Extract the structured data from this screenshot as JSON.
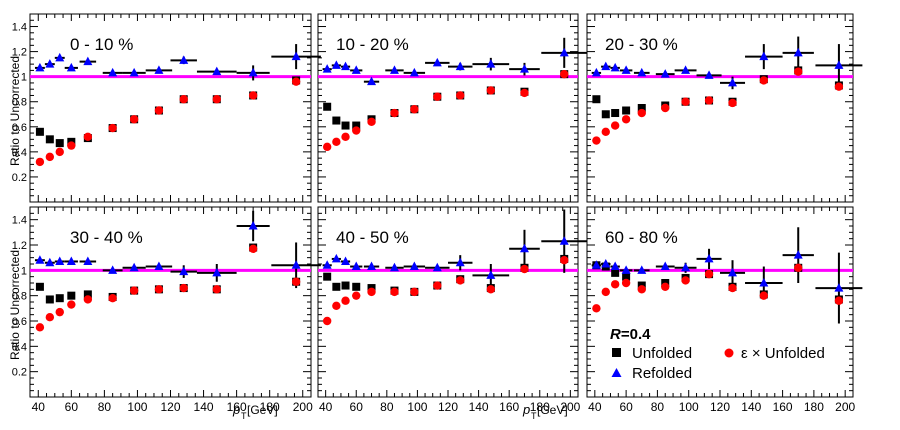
{
  "figure": {
    "ylabel": "Ratio to Uncorrected",
    "xlabel_main": "p",
    "xlabel_sub": "T",
    "xlabel_unit": " [GeV]",
    "yticks_top": [
      "0.2",
      "0.4",
      "0.6",
      "0.8",
      "1",
      "1.2",
      "1.4"
    ],
    "yticks_bottom": [
      "0.2",
      "0.4",
      "0.6",
      "0.8",
      "1",
      "1.2",
      "1.4"
    ],
    "xticks": [
      "40",
      "60",
      "80",
      "100",
      "120",
      "140",
      "160",
      "180",
      "200"
    ],
    "legend": {
      "radius_label": "R",
      "radius_value": "=0.4",
      "unfolded": "Unfolded",
      "eff_unfolded": "ε × Unfolded",
      "refolded": "Refolded"
    },
    "colors": {
      "unfolded": "#000000",
      "eff_unfolded": "#ff0000",
      "refolded": "#0000ff",
      "reference_line": "#ff00ff"
    }
  },
  "chart_data": [
    {
      "type": "scatter",
      "title": "0 - 10 %",
      "xlabel": "pT [GeV]",
      "ylabel": "Ratio to Uncorrected",
      "xlim": [
        35,
        205
      ],
      "ylim": [
        0,
        1.5
      ],
      "reference_line": 1.0,
      "series": [
        {
          "name": "Unfolded",
          "x": [
            41,
            47,
            53,
            60,
            70,
            85,
            98,
            113,
            128,
            148,
            170,
            196
          ],
          "y": [
            0.56,
            0.5,
            0.47,
            0.48,
            0.51,
            0.59,
            0.66,
            0.73,
            0.82,
            0.82,
            0.85,
            0.97
          ]
        },
        {
          "name": "ε × Unfolded",
          "x": [
            41,
            47,
            53,
            60,
            70,
            85,
            98,
            113,
            128,
            148,
            170,
            196
          ],
          "y": [
            0.32,
            0.36,
            0.4,
            0.45,
            0.52,
            0.59,
            0.66,
            0.73,
            0.82,
            0.82,
            0.85,
            0.96
          ]
        },
        {
          "name": "Refolded",
          "x": [
            41,
            47,
            53,
            60,
            70,
            85,
            98,
            113,
            128,
            148,
            170,
            196
          ],
          "y": [
            1.07,
            1.1,
            1.15,
            1.07,
            1.12,
            1.03,
            1.03,
            1.05,
            1.13,
            1.04,
            1.03,
            1.16
          ],
          "yerr": [
            0,
            0,
            0,
            0,
            0,
            0,
            0,
            0,
            0.03,
            0.02,
            0.06,
            0.1
          ],
          "xerr": [
            3,
            3,
            3,
            4,
            5,
            6,
            7,
            8,
            8,
            12,
            10,
            15
          ]
        }
      ]
    },
    {
      "type": "scatter",
      "title": "10 - 20 %",
      "xlabel": "pT [GeV]",
      "ylabel": "Ratio to Uncorrected",
      "xlim": [
        35,
        205
      ],
      "ylim": [
        0,
        1.5
      ],
      "reference_line": 1.0,
      "series": [
        {
          "name": "Unfolded",
          "x": [
            41,
            47,
            53,
            60,
            70,
            85,
            98,
            113,
            128,
            148,
            170,
            196
          ],
          "y": [
            0.76,
            0.65,
            0.61,
            0.61,
            0.66,
            0.71,
            0.74,
            0.84,
            0.85,
            0.89,
            0.88,
            1.02
          ]
        },
        {
          "name": "ε × Unfolded",
          "x": [
            41,
            47,
            53,
            60,
            70,
            85,
            98,
            113,
            128,
            148,
            170,
            196
          ],
          "y": [
            0.44,
            0.48,
            0.52,
            0.57,
            0.64,
            0.71,
            0.74,
            0.84,
            0.85,
            0.89,
            0.87,
            1.02
          ]
        },
        {
          "name": "Refolded",
          "x": [
            41,
            47,
            53,
            60,
            70,
            85,
            98,
            113,
            128,
            148,
            170,
            196
          ],
          "y": [
            1.06,
            1.09,
            1.08,
            1.05,
            0.96,
            1.05,
            1.03,
            1.11,
            1.08,
            1.1,
            1.06,
            1.19
          ],
          "yerr": [
            0,
            0,
            0,
            0,
            0,
            0,
            0,
            0,
            0.03,
            0.05,
            0.05,
            0.12
          ],
          "xerr": [
            3,
            3,
            3,
            4,
            5,
            6,
            7,
            8,
            8,
            12,
            10,
            15
          ]
        }
      ]
    },
    {
      "type": "scatter",
      "title": "20 - 30 %",
      "xlabel": "pT [GeV]",
      "ylabel": "Ratio to Uncorrected",
      "xlim": [
        35,
        205
      ],
      "ylim": [
        0,
        1.5
      ],
      "reference_line": 1.0,
      "series": [
        {
          "name": "Unfolded",
          "x": [
            41,
            47,
            53,
            60,
            70,
            85,
            98,
            113,
            128,
            148,
            170,
            196
          ],
          "y": [
            0.82,
            0.7,
            0.71,
            0.73,
            0.75,
            0.77,
            0.8,
            0.81,
            0.8,
            0.98,
            1.05,
            0.93
          ]
        },
        {
          "name": "ε × Unfolded",
          "x": [
            41,
            47,
            53,
            60,
            70,
            85,
            98,
            113,
            128,
            148,
            170,
            196
          ],
          "y": [
            0.49,
            0.56,
            0.61,
            0.66,
            0.71,
            0.75,
            0.8,
            0.81,
            0.79,
            0.97,
            1.04,
            0.92
          ]
        },
        {
          "name": "Refolded",
          "x": [
            41,
            47,
            53,
            60,
            70,
            85,
            98,
            113,
            128,
            148,
            170,
            196
          ],
          "y": [
            1.03,
            1.08,
            1.07,
            1.05,
            1.03,
            1.02,
            1.05,
            1.01,
            0.95,
            1.16,
            1.19,
            1.09
          ],
          "yerr": [
            0,
            0,
            0,
            0,
            0,
            0,
            0,
            0,
            0.05,
            0.1,
            0.13,
            0.17
          ],
          "xerr": [
            3,
            3,
            3,
            4,
            5,
            6,
            7,
            8,
            8,
            12,
            10,
            15
          ]
        }
      ]
    },
    {
      "type": "scatter",
      "title": "30 - 40 %",
      "xlabel": "pT [GeV]",
      "ylabel": "Ratio to Uncorrected",
      "xlim": [
        35,
        205
      ],
      "ylim": [
        0,
        1.5
      ],
      "reference_line": 1.0,
      "series": [
        {
          "name": "Unfolded",
          "x": [
            41,
            47,
            53,
            60,
            70,
            85,
            98,
            113,
            128,
            148,
            170,
            196
          ],
          "y": [
            0.87,
            0.77,
            0.78,
            0.8,
            0.81,
            0.79,
            0.84,
            0.85,
            0.86,
            0.85,
            1.18,
            0.91
          ]
        },
        {
          "name": "ε × Unfolded",
          "x": [
            41,
            47,
            53,
            60,
            70,
            85,
            98,
            113,
            128,
            148,
            170,
            196
          ],
          "y": [
            0.55,
            0.63,
            0.67,
            0.73,
            0.77,
            0.78,
            0.84,
            0.85,
            0.86,
            0.85,
            1.17,
            0.91
          ]
        },
        {
          "name": "Refolded",
          "x": [
            41,
            47,
            53,
            60,
            70,
            85,
            98,
            113,
            128,
            148,
            170,
            196
          ],
          "y": [
            1.08,
            1.06,
            1.07,
            1.07,
            1.07,
            1.0,
            1.02,
            1.03,
            0.99,
            0.98,
            1.35,
            1.04
          ],
          "yerr": [
            0,
            0,
            0,
            0,
            0,
            0,
            0,
            0,
            0.05,
            0.07,
            0.12,
            0.18
          ],
          "xerr": [
            3,
            3,
            3,
            4,
            5,
            6,
            7,
            8,
            8,
            12,
            10,
            15
          ]
        }
      ]
    },
    {
      "type": "scatter",
      "title": "40 - 50 %",
      "xlabel": "pT [GeV]",
      "ylabel": "Ratio to Uncorrected",
      "xlim": [
        35,
        205
      ],
      "ylim": [
        0,
        1.5
      ],
      "reference_line": 1.0,
      "series": [
        {
          "name": "Unfolded",
          "x": [
            41,
            47,
            53,
            60,
            70,
            85,
            98,
            113,
            128,
            148,
            170,
            196
          ],
          "y": [
            0.95,
            0.87,
            0.88,
            0.87,
            0.86,
            0.84,
            0.83,
            0.88,
            0.93,
            0.86,
            1.02,
            1.09
          ]
        },
        {
          "name": "ε × Unfolded",
          "x": [
            41,
            47,
            53,
            60,
            70,
            85,
            98,
            113,
            128,
            148,
            170,
            196
          ],
          "y": [
            0.6,
            0.72,
            0.76,
            0.8,
            0.83,
            0.83,
            0.83,
            0.88,
            0.92,
            0.85,
            1.01,
            1.08
          ]
        },
        {
          "name": "Refolded",
          "x": [
            41,
            47,
            53,
            60,
            70,
            85,
            98,
            113,
            128,
            148,
            170,
            196
          ],
          "y": [
            1.04,
            1.09,
            1.07,
            1.03,
            1.03,
            1.02,
            1.03,
            1.02,
            1.06,
            0.96,
            1.17,
            1.23
          ],
          "yerr": [
            0,
            0,
            0,
            0,
            0,
            0,
            0,
            0,
            0.06,
            0.09,
            0.15,
            0.25
          ],
          "xerr": [
            3,
            3,
            3,
            4,
            5,
            6,
            7,
            8,
            8,
            12,
            10,
            15
          ]
        }
      ]
    },
    {
      "type": "scatter",
      "title": "60 - 80 %",
      "xlabel": "pT [GeV]",
      "ylabel": "Ratio to Uncorrected",
      "xlim": [
        35,
        205
      ],
      "ylim": [
        0,
        1.5
      ],
      "reference_line": 1.0,
      "series": [
        {
          "name": "Unfolded",
          "x": [
            41,
            47,
            53,
            60,
            70,
            85,
            98,
            113,
            128,
            148,
            170,
            196
          ],
          "y": [
            1.04,
            1.03,
            0.98,
            0.95,
            0.88,
            0.9,
            0.94,
            0.97,
            0.87,
            0.81,
            1.02,
            0.77
          ]
        },
        {
          "name": "ε × Unfolded",
          "x": [
            41,
            47,
            53,
            60,
            70,
            85,
            98,
            113,
            128,
            148,
            170,
            196
          ],
          "y": [
            0.7,
            0.83,
            0.89,
            0.9,
            0.85,
            0.87,
            0.92,
            0.97,
            0.86,
            0.8,
            1.02,
            0.76
          ]
        },
        {
          "name": "Refolded",
          "x": [
            41,
            47,
            53,
            60,
            70,
            85,
            98,
            113,
            128,
            148,
            170,
            196
          ],
          "y": [
            1.04,
            1.05,
            1.03,
            1.0,
            1.0,
            1.03,
            1.02,
            1.09,
            0.98,
            0.9,
            1.12,
            0.86
          ],
          "yerr": [
            0,
            0,
            0,
            0,
            0,
            0,
            0.04,
            0.08,
            0.1,
            0.13,
            0.22,
            0.28
          ],
          "xerr": [
            3,
            3,
            3,
            4,
            5,
            6,
            7,
            8,
            8,
            12,
            10,
            15
          ]
        }
      ]
    }
  ]
}
